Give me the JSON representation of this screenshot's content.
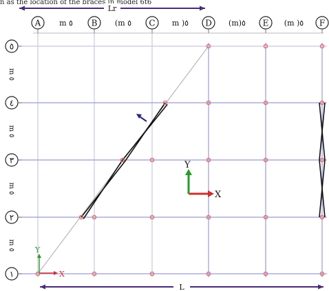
{
  "top_caption": "n as the location of the braces in model 6t6",
  "axis_top_label": "Lr",
  "axis_bottom_label": "L",
  "columns": [
    "A",
    "B",
    "C",
    "D",
    "E",
    "F"
  ],
  "rows": [
    "١",
    "٢",
    "٣",
    "٤",
    "٥"
  ],
  "span_labels_top": [
    "m ٥",
    "(m ٥",
    "m )٥",
    "(m)٥",
    "(m )٥"
  ],
  "span_labels_side": [
    "m ٥",
    "m ٥",
    "m ٥",
    "m ٥"
  ],
  "global_axes": {
    "x": "X",
    "y": "Y"
  },
  "local_axes": {
    "x": "X",
    "y": "Y"
  },
  "colors": {
    "grid": "#9a9ad8",
    "node": "#e07070",
    "brace": "#111111",
    "diagonal": "#b8b8b8",
    "axis_x": "#d03030",
    "axis_y": "#2a9a2a",
    "dimension": "#4a2a7a",
    "bubble": "#222222"
  }
}
